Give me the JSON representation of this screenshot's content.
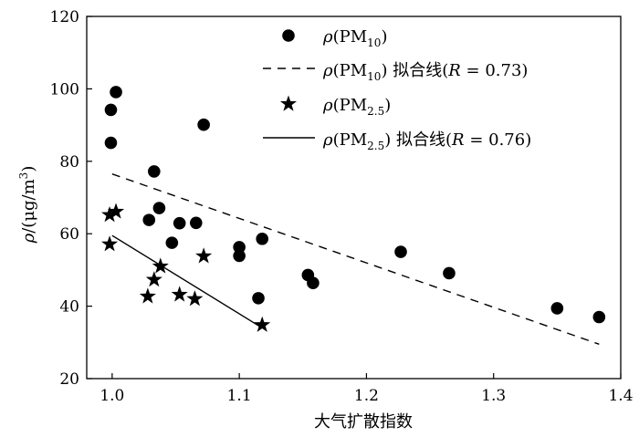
{
  "chart_data": {
    "type": "scatter",
    "title": "",
    "xlabel": "大气扩散指数",
    "ylabel": "ρ/(μg/m³)",
    "xlim": [
      0.98,
      1.4
    ],
    "ylim": [
      20,
      120
    ],
    "xticks": [
      1.0,
      1.1,
      1.2,
      1.3,
      1.4
    ],
    "yticks": [
      20,
      40,
      60,
      80,
      100,
      120
    ],
    "xtick_labels": [
      "1.0",
      "1.1",
      "1.2",
      "1.3",
      "1.4"
    ],
    "ytick_labels": [
      "20",
      "40",
      "60",
      "80",
      "100",
      "120"
    ],
    "grid": false,
    "legend_position": "top-right",
    "series": [
      {
        "name": "ρ(PM10)",
        "marker": "circle",
        "color": "#000000",
        "points": [
          {
            "x": 0.999,
            "y": 94.2
          },
          {
            "x": 1.003,
            "y": 99.1
          },
          {
            "x": 0.999,
            "y": 85.1
          },
          {
            "x": 1.072,
            "y": 90.1
          },
          {
            "x": 1.033,
            "y": 77.2
          },
          {
            "x": 1.037,
            "y": 67.1
          },
          {
            "x": 1.029,
            "y": 63.8
          },
          {
            "x": 1.053,
            "y": 62.9
          },
          {
            "x": 1.066,
            "y": 63.0
          },
          {
            "x": 1.047,
            "y": 57.5
          },
          {
            "x": 1.1,
            "y": 56.3
          },
          {
            "x": 1.1,
            "y": 53.9
          },
          {
            "x": 1.118,
            "y": 58.6
          },
          {
            "x": 1.115,
            "y": 42.2
          },
          {
            "x": 1.154,
            "y": 48.6
          },
          {
            "x": 1.158,
            "y": 46.4
          },
          {
            "x": 1.227,
            "y": 55.0
          },
          {
            "x": 1.265,
            "y": 49.1
          },
          {
            "x": 1.35,
            "y": 39.4
          },
          {
            "x": 1.383,
            "y": 37.0
          }
        ]
      },
      {
        "name": "ρ(PM10) 拟合线(R = 0.73)",
        "type": "line",
        "style": "dashed",
        "color": "#000000",
        "points": [
          {
            "x": 1.0,
            "y": 76.5
          },
          {
            "x": 1.383,
            "y": 29.5
          }
        ]
      },
      {
        "name": "ρ(PM2.5)",
        "marker": "star",
        "color": "#000000",
        "points": [
          {
            "x": 0.998,
            "y": 65.2
          },
          {
            "x": 1.003,
            "y": 66.1
          },
          {
            "x": 0.998,
            "y": 57.1
          },
          {
            "x": 1.038,
            "y": 51.0
          },
          {
            "x": 1.033,
            "y": 47.3
          },
          {
            "x": 1.072,
            "y": 53.8
          },
          {
            "x": 1.028,
            "y": 42.7
          },
          {
            "x": 1.053,
            "y": 43.2
          },
          {
            "x": 1.065,
            "y": 42.0
          },
          {
            "x": 1.118,
            "y": 34.8
          }
        ]
      },
      {
        "name": "ρ(PM2.5) 拟合线(R = 0.76)",
        "type": "line",
        "style": "solid",
        "color": "#000000",
        "points": [
          {
            "x": 1.0,
            "y": 59.5
          },
          {
            "x": 1.118,
            "y": 34.0
          }
        ]
      }
    ]
  },
  "legend": {
    "items": [
      {
        "marker": "circle",
        "line": "none",
        "prefix": "ρ(PM",
        "sub": "10",
        "suffix": ")",
        "tail": ""
      },
      {
        "marker": "none",
        "line": "dashed",
        "prefix": "ρ(PM",
        "sub": "10",
        "suffix": ")",
        "tail": " 拟合线(R = 0.73)"
      },
      {
        "marker": "star",
        "line": "none",
        "prefix": "ρ(PM",
        "sub": "2.5",
        "suffix": ")",
        "tail": ""
      },
      {
        "marker": "none",
        "line": "solid",
        "prefix": "ρ(PM",
        "sub": "2.5",
        "suffix": ")",
        "tail": " 拟合线(R = 0.76)"
      }
    ]
  }
}
